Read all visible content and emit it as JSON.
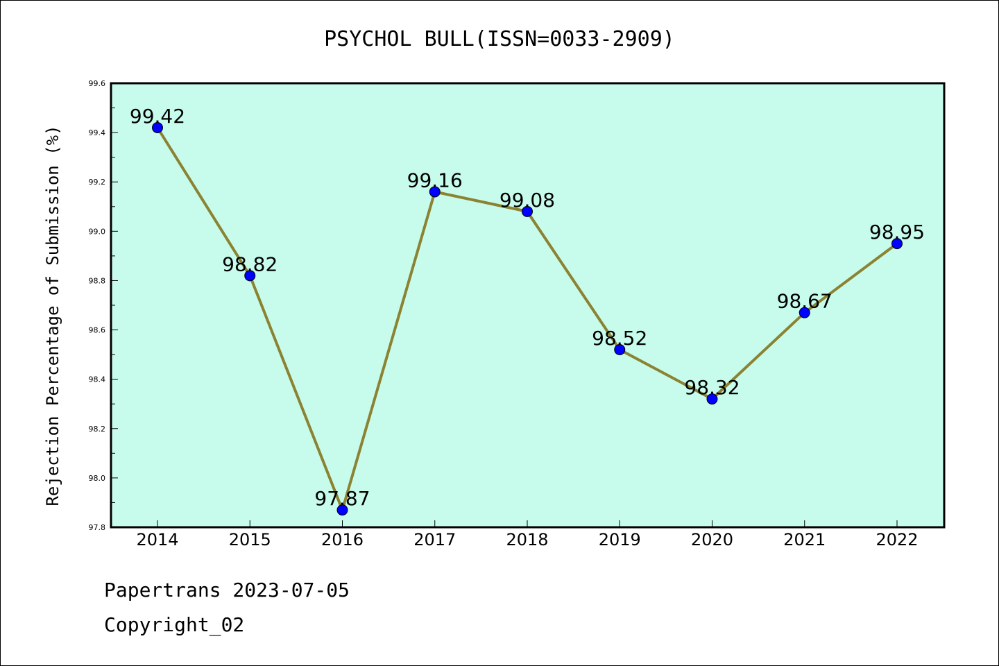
{
  "chart_data": {
    "type": "line",
    "title": "PSYCHOL BULL(ISSN=0033-2909)",
    "xlabel": "",
    "ylabel": "Rejection Percentage of Submission (%)",
    "x": [
      "2014",
      "2015",
      "2016",
      "2017",
      "2018",
      "2019",
      "2020",
      "2021",
      "2022"
    ],
    "series": [
      {
        "values": [
          99.42,
          98.82,
          97.87,
          99.16,
          99.08,
          98.52,
          98.32,
          98.67,
          98.95
        ]
      }
    ],
    "data_labels": [
      "99.42",
      "98.82",
      "97.87",
      "99.16",
      "99.08",
      "98.52",
      "98.32",
      "98.67",
      "98.95"
    ],
    "ylim": [
      97.8,
      99.6
    ],
    "y_ticks": [
      "97.8",
      "98.0",
      "98.2",
      "98.4",
      "98.6",
      "98.8",
      "99.0",
      "99.2",
      "99.4",
      "99.6"
    ],
    "grid": false,
    "colors": {
      "plot_background": "#c7fcec",
      "line": "#8b8232",
      "marker": "#0000ff"
    }
  },
  "footer": {
    "line1": "Papertrans 2023-07-05",
    "line2": "Copyright_02"
  }
}
